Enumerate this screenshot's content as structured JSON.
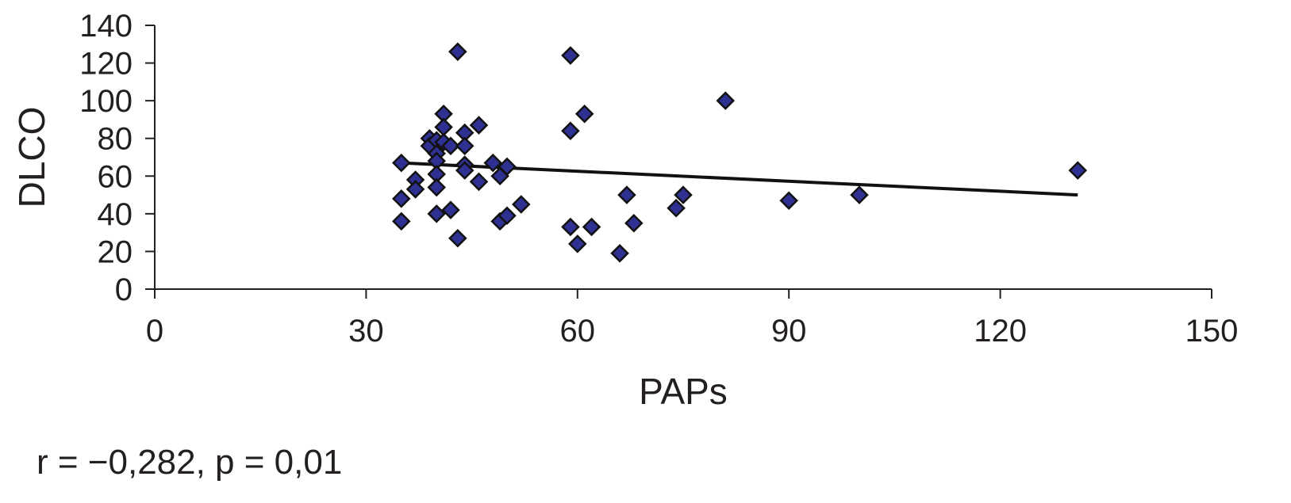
{
  "chart_data": {
    "type": "scatter",
    "xlabel": "PAPs",
    "ylabel": "DLCO",
    "xlim": [
      0,
      150
    ],
    "ylim": [
      0,
      140
    ],
    "xticks": [
      0,
      30,
      60,
      90,
      120,
      150
    ],
    "yticks": [
      0,
      20,
      40,
      60,
      80,
      100,
      120,
      140
    ],
    "grid": false,
    "marker": "diamond",
    "marker_color": "#2e3192",
    "marker_edge_color": "#111111",
    "trendline": {
      "x": [
        35,
        131
      ],
      "y": [
        67,
        50
      ]
    },
    "points": [
      {
        "x": 35,
        "y": 67
      },
      {
        "x": 35,
        "y": 48
      },
      {
        "x": 35,
        "y": 36
      },
      {
        "x": 37,
        "y": 58
      },
      {
        "x": 37,
        "y": 53
      },
      {
        "x": 39,
        "y": 80
      },
      {
        "x": 39,
        "y": 76
      },
      {
        "x": 40,
        "y": 79
      },
      {
        "x": 40,
        "y": 72
      },
      {
        "x": 40,
        "y": 68
      },
      {
        "x": 40,
        "y": 61
      },
      {
        "x": 40,
        "y": 54
      },
      {
        "x": 40,
        "y": 40
      },
      {
        "x": 41,
        "y": 93
      },
      {
        "x": 41,
        "y": 86
      },
      {
        "x": 41,
        "y": 78
      },
      {
        "x": 42,
        "y": 76
      },
      {
        "x": 42,
        "y": 42
      },
      {
        "x": 43,
        "y": 126
      },
      {
        "x": 43,
        "y": 27
      },
      {
        "x": 44,
        "y": 83
      },
      {
        "x": 44,
        "y": 76
      },
      {
        "x": 44,
        "y": 66
      },
      {
        "x": 44,
        "y": 63
      },
      {
        "x": 46,
        "y": 87
      },
      {
        "x": 46,
        "y": 57
      },
      {
        "x": 48,
        "y": 67
      },
      {
        "x": 49,
        "y": 60
      },
      {
        "x": 49,
        "y": 36
      },
      {
        "x": 50,
        "y": 65
      },
      {
        "x": 50,
        "y": 39
      },
      {
        "x": 52,
        "y": 45
      },
      {
        "x": 59,
        "y": 124
      },
      {
        "x": 59,
        "y": 84
      },
      {
        "x": 59,
        "y": 33
      },
      {
        "x": 60,
        "y": 24
      },
      {
        "x": 61,
        "y": 93
      },
      {
        "x": 62,
        "y": 33
      },
      {
        "x": 66,
        "y": 19
      },
      {
        "x": 67,
        "y": 50
      },
      {
        "x": 68,
        "y": 35
      },
      {
        "x": 74,
        "y": 43
      },
      {
        "x": 75,
        "y": 50
      },
      {
        "x": 81,
        "y": 100
      },
      {
        "x": 90,
        "y": 47
      },
      {
        "x": 100,
        "y": 50
      },
      {
        "x": 131,
        "y": 63
      }
    ]
  },
  "annotation": {
    "stats": "r =  −0,282, p = 0,01"
  }
}
